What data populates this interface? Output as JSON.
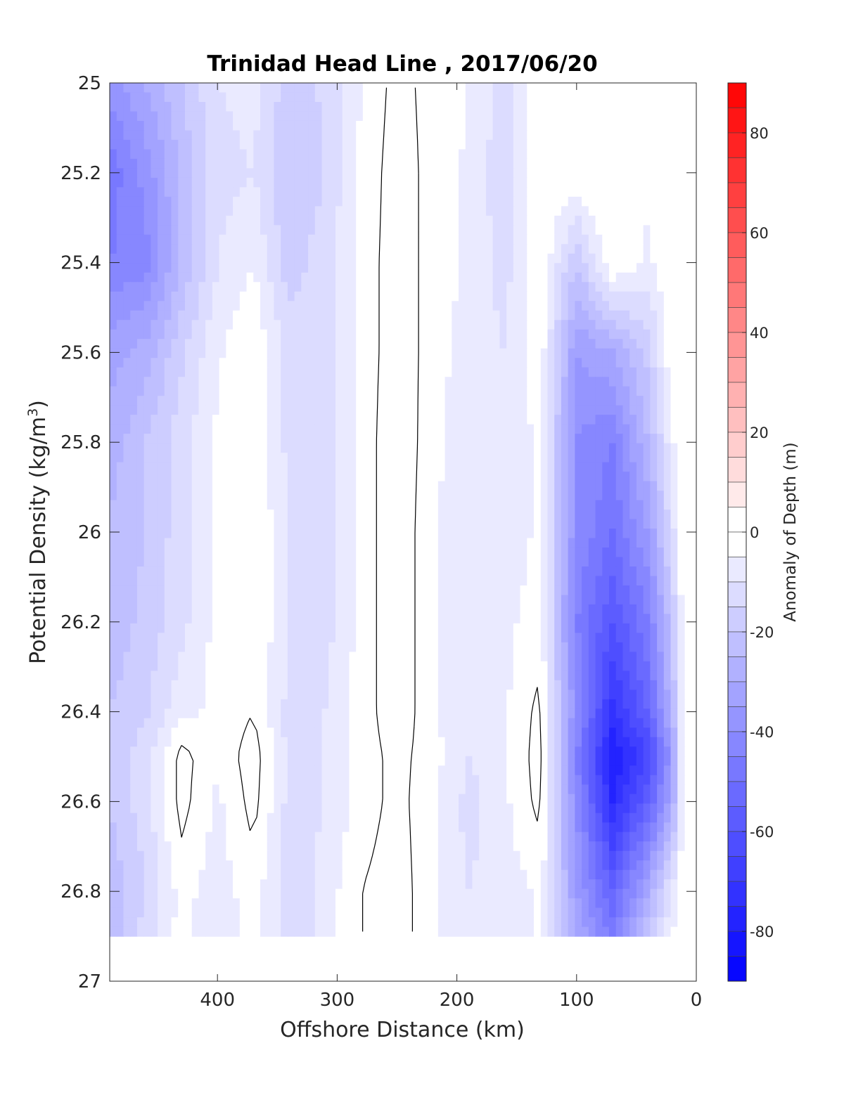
{
  "chart_data": {
    "type": "heatmap",
    "title": "Trinidad Head Line , 2017/06/20",
    "xlabel": "Offshore Distance (km)",
    "ylabel_prefix": "Potential Density (kg/m",
    "ylabel_sup": "3",
    "ylabel_suffix": ")",
    "x_ticks": [
      400,
      300,
      200,
      100,
      0
    ],
    "x_tick_labels": [
      "400",
      "300",
      "200",
      "100",
      "0"
    ],
    "xlim": [
      490,
      0
    ],
    "x_reversed": true,
    "y_ticks": [
      25,
      25.2,
      25.4,
      25.6,
      25.8,
      26,
      26.2,
      26.4,
      26.6,
      26.8,
      27
    ],
    "y_tick_labels": [
      "25",
      "25.2",
      "25.4",
      "25.6",
      "25.8",
      "26",
      "26.2",
      "26.4",
      "26.6",
      "26.8",
      "27"
    ],
    "ylim": [
      25,
      27
    ],
    "y_reversed": true,
    "data_extent_y_max": 26.9,
    "colorbar": {
      "label": "Anomaly of Depth (m)",
      "range": [
        -90,
        90
      ],
      "step": 5,
      "ticks": [
        80,
        60,
        40,
        20,
        0,
        -20,
        -40,
        -60,
        -80
      ],
      "tick_labels": [
        "80",
        "60",
        "40",
        "20",
        "0",
        "-20",
        "-40",
        "-60",
        "-80"
      ],
      "low_color": "#0000ff",
      "mid_color": "#ffffff",
      "high_color": "#ff0000"
    },
    "grid_x": [
      490,
      460,
      430,
      400,
      370,
      340,
      310,
      280,
      250,
      220,
      190,
      160,
      130,
      100,
      70,
      40,
      20,
      10
    ],
    "grid_y": [
      25.0,
      25.2,
      25.4,
      25.6,
      25.8,
      26.0,
      26.2,
      26.4,
      26.5,
      26.6,
      26.8,
      26.9
    ],
    "values": [
      [
        -38,
        -30,
        -20,
        -10,
        -8,
        -18,
        -14,
        -5,
        2,
        -2,
        -5,
        -12,
        0,
        0,
        0,
        0,
        0,
        0
      ],
      [
        -48,
        -38,
        -24,
        -12,
        -10,
        -20,
        -15,
        -4,
        3,
        -2,
        -6,
        -14,
        0,
        0,
        0,
        -4,
        0,
        0
      ],
      [
        -45,
        -42,
        -25,
        -10,
        -5,
        -18,
        -12,
        -3,
        3,
        -2,
        -6,
        -12,
        0,
        -20,
        0,
        -6,
        0,
        0
      ],
      [
        -32,
        -28,
        -16,
        -6,
        0,
        -12,
        -12,
        -3,
        3,
        -2,
        -8,
        -10,
        -2,
        -35,
        -30,
        -18,
        0,
        0
      ],
      [
        -28,
        -20,
        -12,
        -4,
        0,
        -12,
        -14,
        -3,
        4,
        -3,
        -10,
        -8,
        -4,
        -40,
        -45,
        -25,
        -6,
        0
      ],
      [
        -24,
        -20,
        -12,
        -3,
        0,
        -10,
        -14,
        -3,
        4,
        -4,
        -10,
        -8,
        -4,
        -40,
        -50,
        -35,
        -12,
        0
      ],
      [
        -24,
        -18,
        -12,
        -3,
        0,
        -10,
        -12,
        -3,
        4,
        -4,
        -10,
        -6,
        -3,
        -45,
        -60,
        -45,
        -20,
        0
      ],
      [
        -20,
        -16,
        -6,
        -4,
        0,
        -12,
        -10,
        -3,
        4,
        -4,
        -10,
        -6,
        2,
        -40,
        -72,
        -55,
        -25,
        0
      ],
      [
        -20,
        -12,
        2,
        -4,
        3,
        -12,
        -10,
        -3,
        2,
        -3,
        -10,
        -6,
        3,
        -45,
        -80,
        -65,
        -35,
        0
      ],
      [
        -20,
        -12,
        2,
        -6,
        2,
        -12,
        -10,
        -3,
        2,
        -4,
        -12,
        -6,
        2,
        -40,
        -75,
        -55,
        -30,
        0
      ],
      [
        -24,
        -15,
        -3,
        -8,
        -2,
        -14,
        -8,
        0,
        3,
        -4,
        -10,
        -8,
        -4,
        -35,
        -55,
        -30,
        -8,
        0
      ],
      [
        -24,
        -12,
        -3,
        -10,
        -2,
        -14,
        -8,
        0,
        3,
        -4,
        -10,
        -8,
        -4,
        -30,
        -45,
        -20,
        -5,
        0
      ]
    ],
    "contour_levels": [
      0
    ]
  }
}
